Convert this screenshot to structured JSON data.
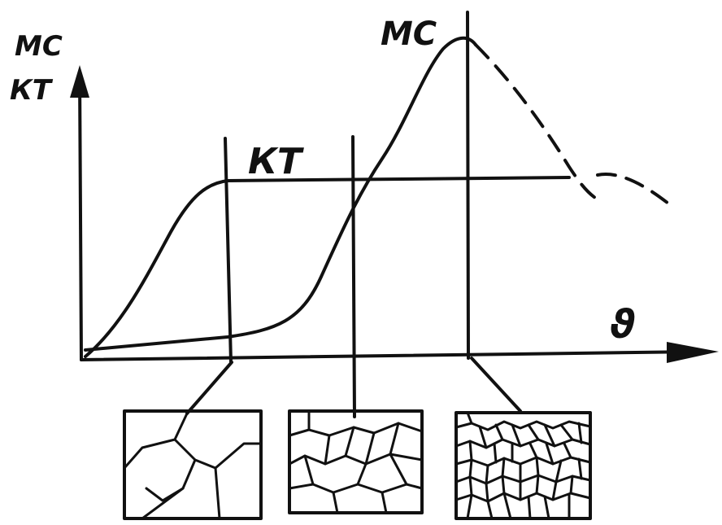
{
  "axis": {
    "y_label_top": "МС",
    "y_label_bottom": "КТ",
    "x_label": "ϑ"
  },
  "curves": {
    "kt_label": "КТ",
    "mc_label": "МС"
  }
}
